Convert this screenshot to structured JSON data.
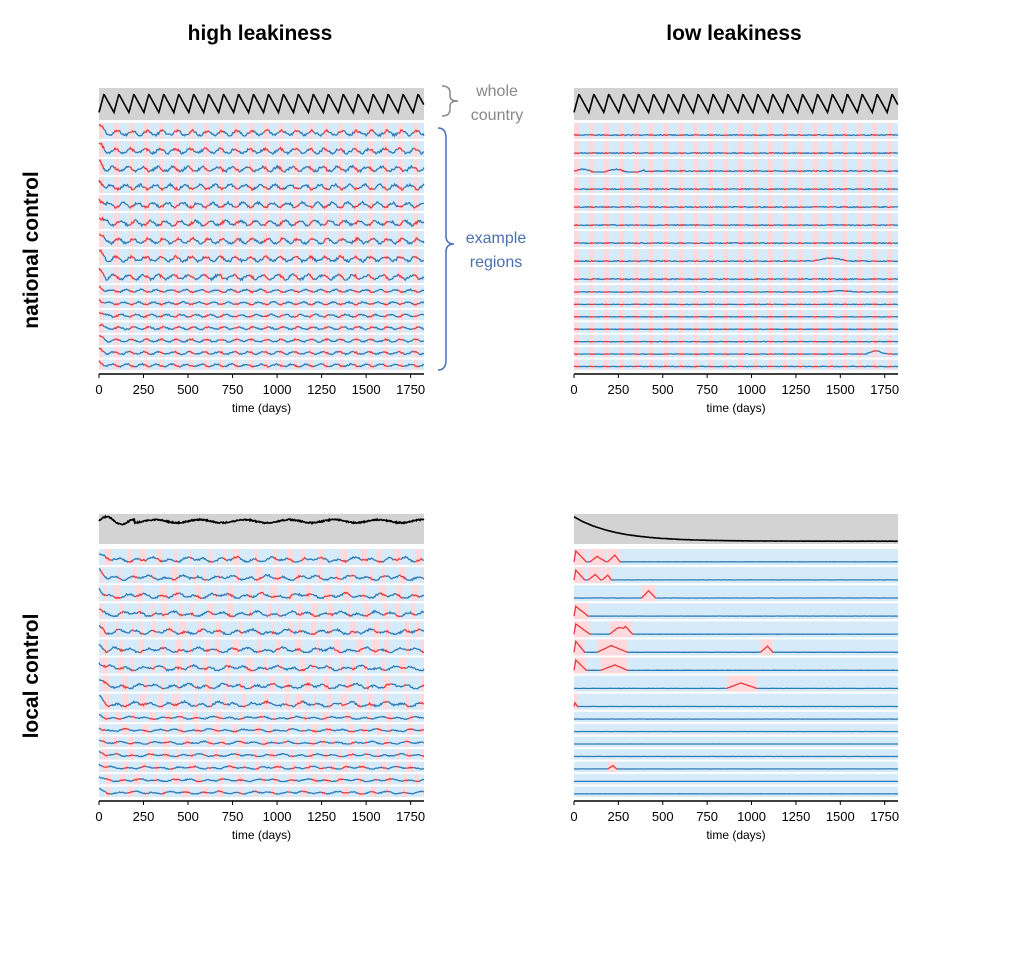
{
  "columns": [
    "high leakiness",
    "low leakiness"
  ],
  "rows": [
    "national control",
    "local control"
  ],
  "annotations": {
    "whole_country": [
      "whole",
      "country"
    ],
    "example_regions": [
      "example",
      "regions"
    ]
  },
  "colors": {
    "country_band": "#d3d3d3",
    "region_band": "#d6ebfa",
    "lockdown_band": "#ffd9dc",
    "line": "#2f7bb5",
    "lockdown_line": "#e8383d",
    "country_line": "#000000",
    "bracket_gray": "#888888",
    "bracket_blue": "#4a6fb3"
  },
  "chart_data": [
    {
      "type": "line",
      "panel": "national control, high leakiness",
      "xlabel": "time (days)",
      "xlim": [
        0,
        1825
      ],
      "xticks": [
        0,
        250,
        500,
        750,
        1000,
        1250,
        1500,
        1750
      ],
      "whole_country": {
        "pattern": "periodic",
        "period_days": 84,
        "min": 0.2,
        "max": 0.85
      },
      "regions": 16,
      "lockdown_period_days": 84,
      "lockdown_days_per_period": 28
    },
    {
      "type": "line",
      "panel": "national control, low leakiness",
      "xlabel": "time (days)",
      "xlim": [
        0,
        1825
      ],
      "xticks": [
        0,
        250,
        500,
        750,
        1000,
        1250,
        1500,
        1750
      ],
      "whole_country": {
        "pattern": "periodic",
        "period_days": 84,
        "min": 0.2,
        "max": 0.85
      },
      "regions": 16,
      "lockdown_period_days": 84,
      "lockdown_days_per_period": 28
    },
    {
      "type": "line",
      "panel": "local control, high leakiness",
      "xlabel": "time (days)",
      "xlim": [
        0,
        1825
      ],
      "xticks": [
        0,
        250,
        500,
        750,
        1000,
        1250,
        1500,
        1750
      ],
      "whole_country": {
        "pattern": "noisy plateau",
        "level": 0.8
      },
      "regions": 16
    },
    {
      "type": "line",
      "panel": "local control, low leakiness",
      "xlabel": "time (days)",
      "xlim": [
        0,
        1825
      ],
      "xticks": [
        0,
        250,
        500,
        750,
        1000,
        1250,
        1500,
        1750
      ],
      "whole_country": {
        "pattern": "decay",
        "start": 0.97,
        "end": 0.03,
        "settle_day": 1200
      },
      "regions": 16
    }
  ]
}
